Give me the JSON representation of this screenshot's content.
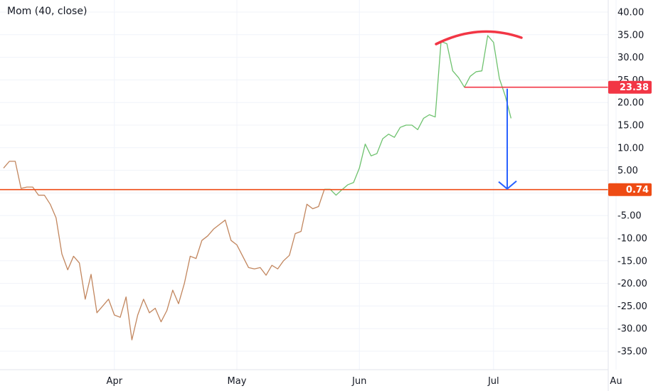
{
  "indicator": {
    "title": "Mom (40, close)"
  },
  "chart_data": {
    "type": "line",
    "title": "Mom (40, close)",
    "ylim": [
      -38,
      42
    ],
    "y_ticks": [
      40,
      35,
      30,
      25,
      20,
      15,
      10,
      5,
      0,
      -5,
      -10,
      -15,
      -20,
      -25,
      -30,
      -35
    ],
    "y_tick_labels": [
      "40.00",
      "35.00",
      "30.00",
      "25.00",
      "20.00",
      "15.00",
      "10.00",
      "5.00",
      "",
      "-5.00",
      "-10.00",
      "-15.00",
      "-20.00",
      "-25.00",
      "-30.00",
      "-35.00"
    ],
    "x_labels": [
      {
        "label": "Apr",
        "index": 19
      },
      {
        "label": "May",
        "index": 40
      },
      {
        "label": "Jun",
        "index": 61
      },
      {
        "label": "Jul",
        "index": 84
      },
      {
        "label": "Au",
        "index": 105
      }
    ],
    "series": [
      {
        "values": [
          5.5,
          7,
          7,
          1,
          1.3,
          1.3,
          -0.5,
          -0.5,
          -2.5,
          -5.5,
          -13.5,
          -17,
          -14,
          -15.5,
          -23.5,
          -18,
          -26.5,
          -25,
          -23.5,
          -27,
          -27.5,
          -23,
          -32.5,
          -27,
          -23.5,
          -26.5,
          -25.5,
          -28.5,
          -26,
          -21.5,
          -24.5,
          -20,
          -14,
          -14.5,
          -10.5,
          -9.5,
          -8,
          -7,
          -6,
          -10.5,
          -11.5,
          -14,
          -16.5,
          -16.8,
          -16.5,
          -18.2,
          -16,
          -16.8,
          -15,
          -13.8,
          -9,
          -8.5,
          -2.5,
          -3.5,
          -3,
          0.8,
          0.8,
          -0.5,
          0.7,
          1.8,
          2.3,
          5.5,
          10.8,
          8.2,
          8.7,
          12,
          13,
          12.3,
          14.5,
          15,
          15,
          14,
          16.5,
          17.3,
          16.8,
          33.5,
          33,
          27,
          25.5,
          23.38,
          25.8,
          26.8,
          27,
          34.8,
          33.3,
          25.3,
          21.5,
          16.5
        ],
        "color_down": "#c2865e",
        "color_up": "#6ec26e",
        "color_change_index": 55
      }
    ],
    "horizontal_lines": [
      {
        "value": 23.38,
        "label": "23.38",
        "color": "#f23645"
      },
      {
        "value": 0.74,
        "label": "0.74",
        "color": "#ee4b14"
      }
    ],
    "annotations": [
      {
        "type": "arc",
        "color": "#f23645"
      },
      {
        "type": "arrow",
        "from_value": 23.38,
        "to_value": 0.74,
        "color": "#2962ff"
      }
    ],
    "grid": true
  }
}
